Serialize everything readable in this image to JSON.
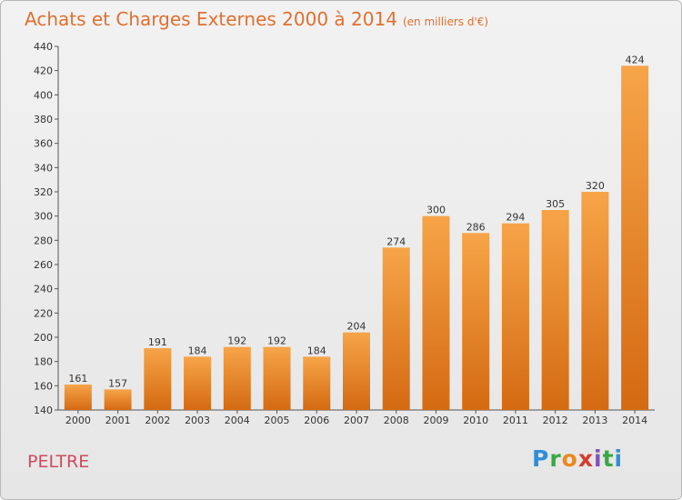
{
  "header": {
    "title": "Achats et Charges Externes 2000 à 2014",
    "unit": "(en milliers d'€)"
  },
  "footer": {
    "commune": "PELTRE",
    "logo": [
      "P",
      "r",
      "o",
      "x",
      "i",
      "t",
      "i"
    ]
  },
  "colors": {
    "bar_light": "#f7a448",
    "bar_dark": "#d46a12",
    "title": "#e07030",
    "commune": "#cf4a5e"
  },
  "chart_data": {
    "type": "bar",
    "title": "Achats et Charges Externes 2000 à 2014",
    "subtitle": "(en milliers d'€)",
    "xlabel": "",
    "ylabel": "",
    "categories": [
      "2000",
      "2001",
      "2002",
      "2003",
      "2004",
      "2005",
      "2006",
      "2007",
      "2008",
      "2009",
      "2010",
      "2011",
      "2012",
      "2013",
      "2014"
    ],
    "values": [
      161,
      157,
      191,
      184,
      192,
      192,
      184,
      204,
      274,
      300,
      286,
      294,
      305,
      320,
      424
    ],
    "ylim": [
      140,
      440
    ],
    "yticks": [
      140,
      160,
      180,
      200,
      220,
      240,
      260,
      280,
      300,
      320,
      340,
      360,
      380,
      400,
      420,
      440
    ],
    "grid": false,
    "data_labels": true
  }
}
